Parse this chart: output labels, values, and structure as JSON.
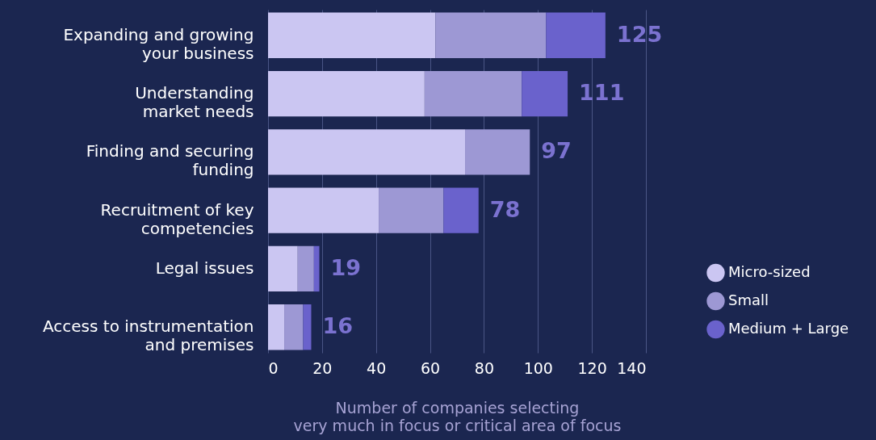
{
  "chart_data": {
    "type": "bar",
    "orientation": "horizontal",
    "stacked": true,
    "categories": [
      "Expanding and growing\nyour business",
      "Understanding\nmarket needs",
      "Finding and securing\nfunding",
      "Recruitment of key\ncompetencies",
      "Legal issues",
      "Access to instrumentation\nand premises"
    ],
    "series": [
      {
        "name": "Micro-sized",
        "color": "#cbc6f2",
        "values": [
          62,
          58,
          73,
          41,
          11,
          6
        ]
      },
      {
        "name": "Small",
        "color": "#9d98d4",
        "values": [
          41,
          36,
          24,
          24,
          6,
          7
        ]
      },
      {
        "name": "Medium + Large",
        "color": "#6a62cc",
        "values": [
          22,
          17,
          0,
          13,
          2,
          3
        ]
      }
    ],
    "totals": [
      "125",
      "111",
      "97",
      "78",
      "19",
      "16"
    ],
    "xlabel": "Number of companies selecting\nvery much in focus or critical area of focus",
    "xlim": [
      0,
      140
    ],
    "xticks": [
      0,
      20,
      40,
      60,
      80,
      100,
      120,
      140
    ],
    "grid": "x",
    "legend": "right"
  }
}
